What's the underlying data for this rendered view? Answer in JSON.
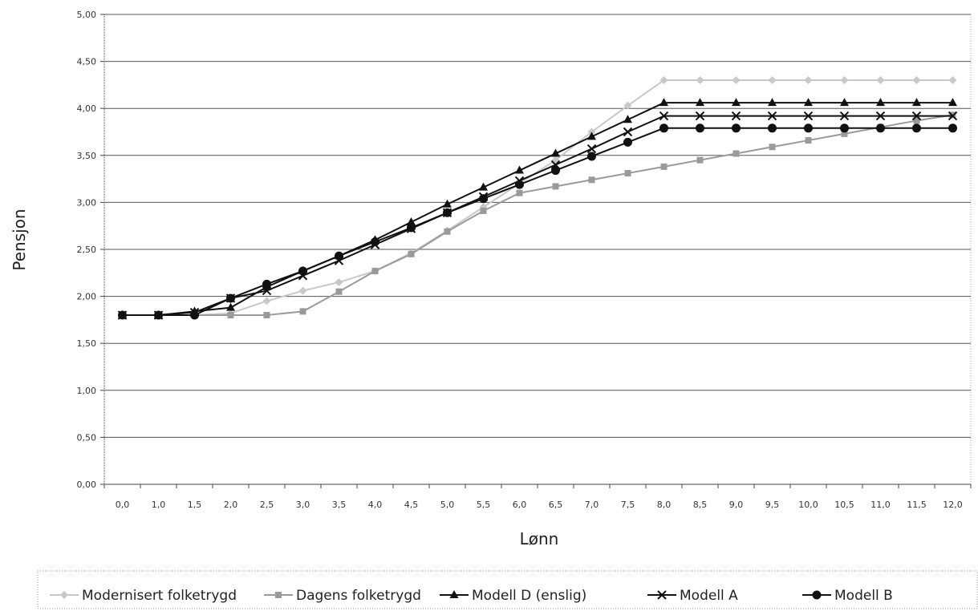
{
  "chart_data": {
    "type": "line",
    "title": "",
    "xlabel": "Lønn",
    "ylabel": "Pensjon",
    "x_tick_labels": [
      "0,0",
      "1,0",
      "1,5",
      "2,0",
      "2,5",
      "3,0",
      "3,5",
      "4,0",
      "4,5",
      "5,0",
      "5,5",
      "6,0",
      "6,5",
      "7,0",
      "7,5",
      "8,0",
      "8,5",
      "9,0",
      "9,5",
      "10,0",
      "10,5",
      "11,0",
      "11,5",
      "12,0"
    ],
    "y_tick_labels": [
      "0,00",
      "0,50",
      "1,00",
      "1,50",
      "2,00",
      "2,50",
      "3,00",
      "3,50",
      "4,00",
      "4,50",
      "5,00"
    ],
    "ylim": [
      0,
      5
    ],
    "grid": true,
    "legend_position": "bottom",
    "series": [
      {
        "name": "Modernisert folketrygd",
        "color": "#c8c8c8",
        "marker": "diamond",
        "values": [
          1.8,
          1.8,
          1.8,
          1.82,
          1.95,
          2.06,
          2.15,
          2.27,
          2.46,
          2.7,
          2.95,
          3.2,
          3.45,
          3.75,
          4.03,
          4.3,
          4.3,
          4.3,
          4.3,
          4.3,
          4.3,
          4.3,
          4.3,
          4.3
        ]
      },
      {
        "name": "Dagens folketrygd",
        "color": "#9a9a9a",
        "marker": "square",
        "values": [
          1.8,
          1.8,
          1.8,
          1.8,
          1.8,
          1.84,
          2.05,
          2.27,
          2.45,
          2.69,
          2.91,
          3.1,
          3.17,
          3.24,
          3.31,
          3.38,
          3.45,
          3.52,
          3.59,
          3.66,
          3.73,
          3.8,
          3.87,
          3.93
        ]
      },
      {
        "name": "Modell D (enslig)",
        "color": "#111111",
        "marker": "triangle",
        "values": [
          1.8,
          1.8,
          1.84,
          1.88,
          2.1,
          2.27,
          2.43,
          2.6,
          2.79,
          2.98,
          3.16,
          3.34,
          3.52,
          3.7,
          3.88,
          4.06,
          4.06,
          4.06,
          4.06,
          4.06,
          4.06,
          4.06,
          4.06,
          4.06
        ]
      },
      {
        "name": "Modell A",
        "color": "#111111",
        "marker": "x",
        "values": [
          1.8,
          1.8,
          1.83,
          1.98,
          2.06,
          2.22,
          2.38,
          2.55,
          2.72,
          2.89,
          3.06,
          3.23,
          3.4,
          3.57,
          3.75,
          3.92,
          3.92,
          3.92,
          3.92,
          3.92,
          3.92,
          3.92,
          3.92,
          3.92
        ]
      },
      {
        "name": "Modell B",
        "color": "#111111",
        "marker": "circle",
        "values": [
          1.8,
          1.8,
          1.8,
          1.98,
          2.13,
          2.27,
          2.43,
          2.58,
          2.73,
          2.89,
          3.04,
          3.19,
          3.34,
          3.49,
          3.64,
          3.79,
          3.79,
          3.79,
          3.79,
          3.79,
          3.79,
          3.79,
          3.79,
          3.79
        ]
      }
    ]
  }
}
